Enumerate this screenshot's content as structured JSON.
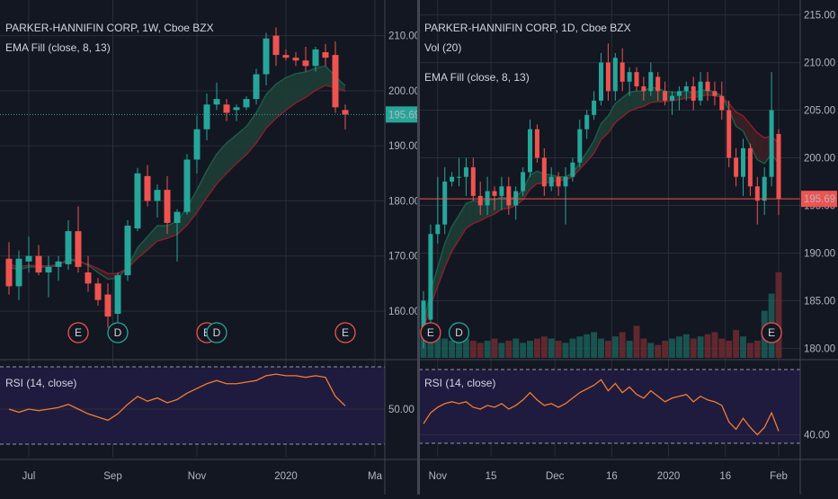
{
  "colors": {
    "up": "#26a69a",
    "down": "#ef5350",
    "bg": "#131722",
    "grid": "#2a2e39",
    "rsi": "#f57c2b",
    "rsi_band": "#1e1b3f",
    "ema_fast": "#1b5e4a",
    "ema_slow": "#8b1e2d",
    "vol_up": "#1b5e57",
    "vol_down": "#6e2b30"
  },
  "chart_data": [
    {
      "id": "weekly",
      "type": "candlestick",
      "title": "PARKER-HANNIFIN CORP, 1W, Cboe BZX",
      "indicator_label": "EMA Fill (close, 8, 13)",
      "price_axis": {
        "ticks": [
          160,
          170,
          180,
          190,
          200,
          210
        ],
        "range": [
          151.5,
          215.5
        ],
        "last_price": 195.69,
        "last_price_label": "195.69"
      },
      "time_axis": {
        "labels": [
          "Jul",
          "Sep",
          "Nov",
          "2020",
          "Ma"
        ],
        "label_bar_index": [
          2,
          10.5,
          19,
          28,
          37
        ]
      },
      "candles": [
        {
          "o": 169.5,
          "h": 172.5,
          "l": 163.0,
          "c": 164.5
        },
        {
          "o": 164.5,
          "h": 171.0,
          "l": 162.0,
          "c": 169.5
        },
        {
          "o": 169.0,
          "h": 173.5,
          "l": 167.0,
          "c": 170.0
        },
        {
          "o": 170.0,
          "h": 172.0,
          "l": 166.5,
          "c": 167.0
        },
        {
          "o": 167.0,
          "h": 170.0,
          "l": 162.5,
          "c": 168.0
        },
        {
          "o": 168.0,
          "h": 170.0,
          "l": 165.5,
          "c": 169.0
        },
        {
          "o": 168.5,
          "h": 176.5,
          "l": 167.5,
          "c": 174.5
        },
        {
          "o": 174.5,
          "h": 179.0,
          "l": 167.0,
          "c": 168.0
        },
        {
          "o": 167.0,
          "h": 170.0,
          "l": 163.5,
          "c": 165.0
        },
        {
          "o": 165.0,
          "h": 166.0,
          "l": 161.0,
          "c": 162.0
        },
        {
          "o": 163.0,
          "h": 165.0,
          "l": 157.0,
          "c": 159.0
        },
        {
          "o": 159.5,
          "h": 167.0,
          "l": 158.0,
          "c": 166.5
        },
        {
          "o": 166.5,
          "h": 176.5,
          "l": 165.5,
          "c": 175.5
        },
        {
          "o": 175.0,
          "h": 186.0,
          "l": 174.5,
          "c": 185.0
        },
        {
          "o": 184.5,
          "h": 186.5,
          "l": 179.0,
          "c": 180.0
        },
        {
          "o": 180.0,
          "h": 183.0,
          "l": 177.0,
          "c": 182.0
        },
        {
          "o": 182.0,
          "h": 184.5,
          "l": 174.0,
          "c": 176.0
        },
        {
          "o": 176.0,
          "h": 178.5,
          "l": 169.0,
          "c": 178.0
        },
        {
          "o": 178.0,
          "h": 188.5,
          "l": 177.5,
          "c": 187.5
        },
        {
          "o": 187.5,
          "h": 195.5,
          "l": 185.0,
          "c": 193.0
        },
        {
          "o": 193.0,
          "h": 199.5,
          "l": 191.0,
          "c": 197.5
        },
        {
          "o": 197.5,
          "h": 201.5,
          "l": 196.5,
          "c": 198.5
        },
        {
          "o": 197.5,
          "h": 198.5,
          "l": 194.5,
          "c": 196.0
        },
        {
          "o": 196.5,
          "h": 197.5,
          "l": 194.5,
          "c": 197.0
        },
        {
          "o": 197.0,
          "h": 199.0,
          "l": 196.5,
          "c": 198.5
        },
        {
          "o": 198.5,
          "h": 204.0,
          "l": 197.5,
          "c": 203.0
        },
        {
          "o": 203.0,
          "h": 210.5,
          "l": 201.0,
          "c": 209.5
        },
        {
          "o": 210.0,
          "h": 211.5,
          "l": 204.5,
          "c": 206.5
        },
        {
          "o": 206.5,
          "h": 207.5,
          "l": 205.5,
          "c": 206.0
        },
        {
          "o": 206.0,
          "h": 207.0,
          "l": 204.5,
          "c": 205.5
        },
        {
          "o": 205.5,
          "h": 208.0,
          "l": 203.5,
          "c": 204.5
        },
        {
          "o": 204.5,
          "h": 208.0,
          "l": 203.5,
          "c": 207.5
        },
        {
          "o": 207.0,
          "h": 208.5,
          "l": 204.5,
          "c": 206.0
        },
        {
          "o": 206.5,
          "h": 209.0,
          "l": 196.0,
          "c": 197.0
        },
        {
          "o": 196.5,
          "h": 197.5,
          "l": 193.0,
          "c": 195.69
        }
      ],
      "ema_fast": [
        168.0,
        167.5,
        168.0,
        168.0,
        168.0,
        168.3,
        169.5,
        169.2,
        168.3,
        167.0,
        165.8,
        166.0,
        168.0,
        171.5,
        173.5,
        175.5,
        175.5,
        176.3,
        178.8,
        182.0,
        185.5,
        188.5,
        190.5,
        192.0,
        193.5,
        196.0,
        199.3,
        201.2,
        202.4,
        203.1,
        203.4,
        204.1,
        204.5,
        202.6,
        200.9
      ],
      "ema_slow": [
        168.5,
        168.0,
        168.3,
        168.2,
        168.2,
        168.4,
        169.2,
        169.0,
        168.5,
        167.7,
        166.8,
        166.8,
        167.8,
        169.6,
        171.1,
        172.7,
        173.2,
        173.9,
        175.6,
        177.9,
        180.6,
        183.1,
        185.0,
        186.8,
        188.4,
        190.5,
        193.2,
        195.0,
        196.5,
        197.8,
        198.8,
        200.1,
        201.0,
        200.5,
        199.9
      ],
      "rsi": {
        "label": "RSI (14, close)",
        "ticks": [
          50
        ],
        "tick_labels": [
          "50.00"
        ],
        "range": [
          20,
          80
        ],
        "bands": [
          70,
          30
        ],
        "values": [
          50,
          48,
          50,
          49,
          50,
          51,
          53,
          50,
          47,
          45,
          43,
          47,
          53,
          58,
          55,
          57,
          54,
          56,
          60,
          63,
          66,
          68,
          66,
          66,
          67,
          68,
          71,
          72,
          71,
          71,
          70,
          71,
          70,
          58,
          52
        ]
      },
      "events": [
        {
          "label": "E",
          "bar": 7,
          "type": "earnings"
        },
        {
          "label": "D",
          "bar": 11,
          "type": "dividend"
        },
        {
          "label": "E",
          "bar": 20,
          "type": "earnings"
        },
        {
          "label": "D",
          "bar": 21,
          "type": "dividend"
        },
        {
          "label": "E",
          "bar": 34,
          "type": "earnings"
        }
      ]
    },
    {
      "id": "daily",
      "type": "candlestick",
      "title": "PARKER-HANNIFIN CORP, 1D, Cboe BZX",
      "indicator_label": "Vol (20)",
      "indicator_label_2": "EMA Fill (close, 8, 13)",
      "price_axis": {
        "ticks": [
          180,
          185,
          190,
          195,
          200,
          205,
          210,
          215
        ],
        "range": [
          179.0,
          216.0
        ],
        "last_price": 195.69,
        "last_price_label": "195.69"
      },
      "time_axis": {
        "labels": [
          "Nov",
          "15",
          "Dec",
          "16",
          "2020",
          "16",
          "Feb"
        ],
        "label_bar_index": [
          2,
          9.5,
          18.5,
          26.5,
          34.5,
          42.5,
          50
        ]
      },
      "candles": [
        {
          "o": 182,
          "h": 186,
          "l": 180,
          "c": 185
        },
        {
          "o": 183,
          "h": 193,
          "l": 182,
          "c": 192
        },
        {
          "o": 192,
          "h": 198,
          "l": 191,
          "c": 193
        },
        {
          "o": 193,
          "h": 199,
          "l": 192,
          "c": 197.5
        },
        {
          "o": 197.5,
          "h": 198.5,
          "l": 197,
          "c": 198
        },
        {
          "o": 198,
          "h": 200,
          "l": 197,
          "c": 198
        },
        {
          "o": 198,
          "h": 200,
          "l": 196,
          "c": 199
        },
        {
          "o": 199,
          "h": 200,
          "l": 195.5,
          "c": 196
        },
        {
          "o": 196,
          "h": 197.5,
          "l": 194,
          "c": 195
        },
        {
          "o": 195,
          "h": 198,
          "l": 194,
          "c": 196.5
        },
        {
          "o": 196.5,
          "h": 197,
          "l": 194.5,
          "c": 196
        },
        {
          "o": 196,
          "h": 198,
          "l": 194.5,
          "c": 197
        },
        {
          "o": 197,
          "h": 198,
          "l": 194,
          "c": 195
        },
        {
          "o": 195,
          "h": 197,
          "l": 193.5,
          "c": 196.5
        },
        {
          "o": 196.5,
          "h": 199,
          "l": 196,
          "c": 198.5
        },
        {
          "o": 198.5,
          "h": 204,
          "l": 198,
          "c": 203
        },
        {
          "o": 203,
          "h": 203.5,
          "l": 199.5,
          "c": 200
        },
        {
          "o": 200,
          "h": 201,
          "l": 196,
          "c": 197
        },
        {
          "o": 197,
          "h": 199,
          "l": 196.5,
          "c": 198
        },
        {
          "o": 198,
          "h": 198.5,
          "l": 196,
          "c": 197
        },
        {
          "o": 197,
          "h": 199,
          "l": 193,
          "c": 198
        },
        {
          "o": 198,
          "h": 200,
          "l": 197.5,
          "c": 199.5
        },
        {
          "o": 199.5,
          "h": 204,
          "l": 199,
          "c": 203
        },
        {
          "o": 203,
          "h": 205,
          "l": 202,
          "c": 204.5
        },
        {
          "o": 204.5,
          "h": 207,
          "l": 204,
          "c": 206
        },
        {
          "o": 206,
          "h": 211,
          "l": 205.5,
          "c": 210
        },
        {
          "o": 210,
          "h": 212,
          "l": 206,
          "c": 207
        },
        {
          "o": 207,
          "h": 211,
          "l": 206,
          "c": 210.5
        },
        {
          "o": 210,
          "h": 211.5,
          "l": 207,
          "c": 208
        },
        {
          "o": 208,
          "h": 209.5,
          "l": 206.5,
          "c": 209
        },
        {
          "o": 209,
          "h": 209.5,
          "l": 207,
          "c": 207.5
        },
        {
          "o": 207.5,
          "h": 208.5,
          "l": 206,
          "c": 207
        },
        {
          "o": 207,
          "h": 210,
          "l": 206.5,
          "c": 209
        },
        {
          "o": 208.5,
          "h": 209,
          "l": 206,
          "c": 207
        },
        {
          "o": 207,
          "h": 208,
          "l": 205.5,
          "c": 206
        },
        {
          "o": 206,
          "h": 207,
          "l": 204.5,
          "c": 206.5
        },
        {
          "o": 206.5,
          "h": 207.5,
          "l": 205,
          "c": 207
        },
        {
          "o": 207,
          "h": 208,
          "l": 206,
          "c": 207.5
        },
        {
          "o": 207.5,
          "h": 208.5,
          "l": 205,
          "c": 206
        },
        {
          "o": 206,
          "h": 209,
          "l": 205.5,
          "c": 208
        },
        {
          "o": 208,
          "h": 209,
          "l": 206,
          "c": 207
        },
        {
          "o": 207,
          "h": 208,
          "l": 205.5,
          "c": 206.5
        },
        {
          "o": 206.5,
          "h": 208,
          "l": 204,
          "c": 205
        },
        {
          "o": 205,
          "h": 206,
          "l": 199,
          "c": 200
        },
        {
          "o": 200,
          "h": 201,
          "l": 197,
          "c": 198
        },
        {
          "o": 198,
          "h": 202,
          "l": 196,
          "c": 201
        },
        {
          "o": 201,
          "h": 201.5,
          "l": 196,
          "c": 197
        },
        {
          "o": 197,
          "h": 198,
          "l": 193,
          "c": 195.5
        },
        {
          "o": 195.5,
          "h": 199,
          "l": 194,
          "c": 198
        },
        {
          "o": 198,
          "h": 209,
          "l": 197,
          "c": 205
        },
        {
          "o": 202.5,
          "h": 203,
          "l": 194,
          "c": 195.69
        }
      ],
      "ema_fast": [
        182.5,
        186,
        188.5,
        191,
        192.8,
        194,
        195.2,
        195.5,
        195.4,
        195.6,
        195.6,
        195.9,
        195.7,
        195.9,
        196.6,
        198.2,
        198.6,
        198.3,
        198.2,
        198,
        198,
        198.4,
        199.5,
        200.6,
        201.8,
        203.6,
        204.4,
        205.7,
        206.3,
        206.9,
        207,
        207,
        207.4,
        207.3,
        207,
        206.9,
        206.9,
        207,
        206.8,
        207.1,
        207.1,
        206.9,
        206.5,
        205,
        203.3,
        202.8,
        201.3,
        199.8,
        199.4,
        200.4,
        199.4
      ],
      "ema_slow": [
        182,
        184.5,
        186.5,
        188.5,
        190.2,
        191.4,
        192.6,
        193.1,
        193.4,
        193.8,
        194.1,
        194.6,
        194.7,
        195,
        195.6,
        196.7,
        197.3,
        197.3,
        197.5,
        197.6,
        197.7,
        198,
        198.8,
        199.6,
        200.5,
        201.9,
        202.6,
        203.7,
        204.3,
        204.9,
        205.2,
        205.4,
        205.8,
        205.9,
        205.9,
        206,
        206.1,
        206.3,
        206.3,
        206.5,
        206.6,
        206.5,
        206.4,
        205.7,
        204.8,
        204.4,
        203.5,
        202.6,
        202.1,
        202.3,
        201.5
      ],
      "volume": {
        "label": "Vol (20)",
        "values": [
          12,
          11,
          10,
          9,
          8,
          10,
          9,
          8,
          7,
          8,
          9,
          7,
          8,
          9,
          7,
          8,
          9,
          10,
          9,
          8,
          7,
          9,
          10,
          11,
          12,
          9,
          8,
          10,
          12,
          8,
          15,
          9,
          7,
          6,
          8,
          9,
          10,
          11,
          9,
          10,
          11,
          12,
          9,
          8,
          13,
          10,
          7,
          8,
          22,
          30,
          40
        ],
        "max": 42
      },
      "rsi": {
        "label": "RSI (14, close)",
        "ticks": [
          40
        ],
        "tick_labels": [
          "40.00"
        ],
        "range": [
          28,
          80
        ],
        "bands": [
          70,
          30
        ],
        "values": [
          46,
          52,
          55,
          57,
          58,
          57,
          58,
          55,
          54,
          56,
          55,
          57,
          54,
          56,
          59,
          63,
          59,
          56,
          57,
          55,
          57,
          60,
          63,
          65,
          67,
          70,
          64,
          68,
          63,
          66,
          62,
          60,
          64,
          61,
          58,
          60,
          61,
          62,
          58,
          61,
          59,
          58,
          56,
          47,
          43,
          49,
          44,
          40,
          44,
          52,
          42
        ]
      },
      "events": [
        {
          "label": "E",
          "bar": 1,
          "type": "earnings"
        },
        {
          "label": "D",
          "bar": 5,
          "type": "dividend"
        },
        {
          "label": "E",
          "bar": 49,
          "type": "earnings"
        }
      ]
    }
  ]
}
